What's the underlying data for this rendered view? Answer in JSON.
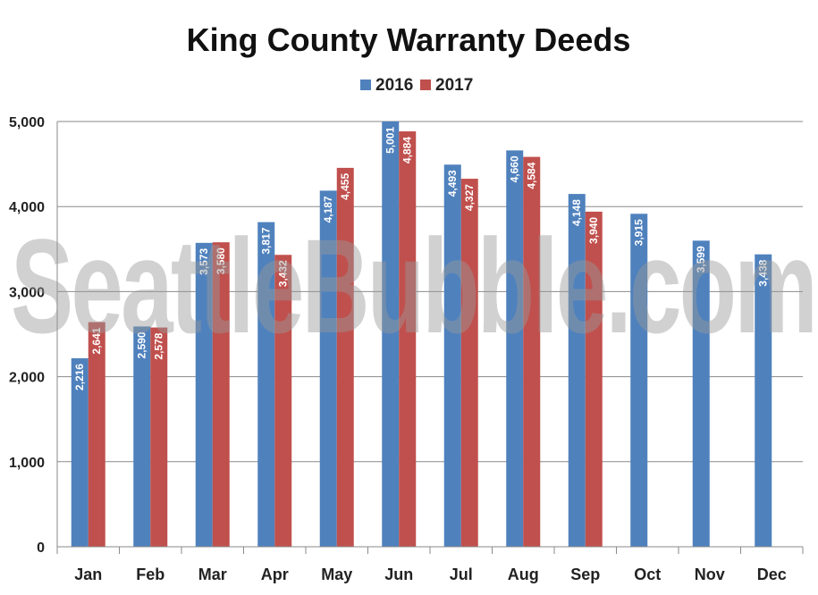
{
  "chart_data": {
    "type": "bar",
    "title": "King County Warranty Deeds",
    "categories": [
      "Jan",
      "Feb",
      "Mar",
      "Apr",
      "May",
      "Jun",
      "Jul",
      "Aug",
      "Sep",
      "Oct",
      "Nov",
      "Dec"
    ],
    "series": [
      {
        "name": "2016",
        "color": "#4F81BD",
        "values": [
          2216,
          2590,
          3573,
          3817,
          4187,
          5001,
          4493,
          4660,
          4148,
          3915,
          3599,
          3438
        ],
        "labels": [
          "2,216",
          "2,590",
          "3,573",
          "3,817",
          "4,187",
          "5,001",
          "4,493",
          "4,660",
          "4,148",
          "3,915",
          "3,599",
          "3,438"
        ]
      },
      {
        "name": "2017",
        "color": "#C0504D",
        "values": [
          2641,
          2578,
          3580,
          3432,
          4455,
          4884,
          4327,
          4584,
          3940,
          null,
          null,
          null
        ],
        "labels": [
          "2,641",
          "2,578",
          "3,580",
          "3,432",
          "4,455",
          "4,884",
          "4,327",
          "4,584",
          "3,940",
          null,
          null,
          null
        ]
      }
    ],
    "ylim": [
      0,
      5000
    ],
    "yticks": [
      0,
      1000,
      2000,
      3000,
      4000,
      5000
    ],
    "ytick_labels": [
      "0",
      "1,000",
      "2,000",
      "3,000",
      "4,000",
      "5,000"
    ],
    "grid": true,
    "legend_position": "top-center",
    "xlabel": "",
    "ylabel": ""
  },
  "watermark": {
    "text": "SeattleBubble.com"
  }
}
